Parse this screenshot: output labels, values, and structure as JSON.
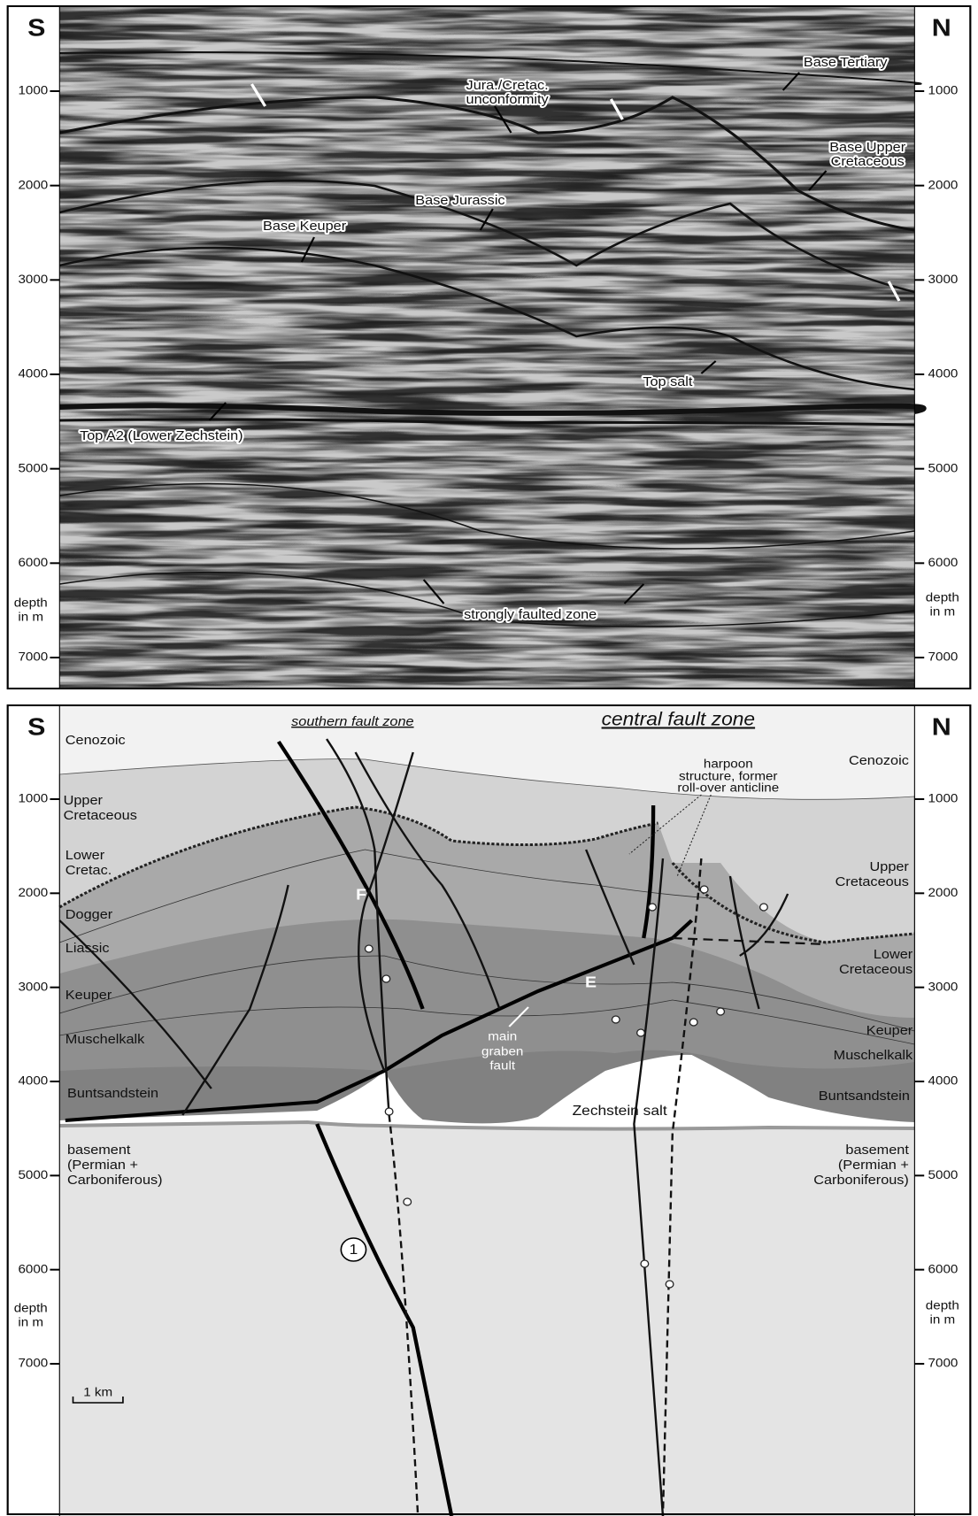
{
  "top_panel": {
    "left_label": "S",
    "right_label": "N",
    "depth_ticks": [
      1000,
      2000,
      3000,
      4000,
      5000,
      6000,
      7000
    ],
    "axis_label": [
      "depth",
      "in m"
    ],
    "annotations": {
      "base_tertiary": "Base Tertiary",
      "jura_cretac": [
        "Jura./Cretac.",
        "unconformity"
      ],
      "base_upper_cretaceous": [
        "Base Upper",
        "Cretaceous"
      ],
      "base_jurassic": "Base Jurassic",
      "base_keuper": "Base Keuper",
      "top_salt": "Top salt",
      "top_a2": "Top A2 (Lower Zechstein)",
      "strongly_faulted_zone": "strongly faulted zone"
    }
  },
  "bottom_panel": {
    "left_label": "S",
    "right_label": "N",
    "depth_ticks": [
      1000,
      2000,
      3000,
      4000,
      5000,
      6000,
      7000
    ],
    "axis_label": [
      "depth",
      "in m"
    ],
    "headings": {
      "southern": "southern fault zone",
      "central": "central fault zone"
    },
    "units_left": {
      "cenozoic": "Cenozoic",
      "upper_cretaceous": [
        "Upper",
        "Cretaceous"
      ],
      "lower_cretac": [
        "Lower",
        "Cretac."
      ],
      "dogger": "Dogger",
      "liassic": "Liassic",
      "keuper": "Keuper",
      "muschelkalk": "Muschelkalk",
      "buntsandstein": "Buntsandstein",
      "basement": [
        "basement",
        "(Permian +",
        "Carboniferous)"
      ]
    },
    "units_right": {
      "cenozoic": "Cenozoic",
      "upper_cretaceous": [
        "Upper",
        "Cretaceous"
      ],
      "lower_cretaceous": [
        "Lower",
        "Cretaceous"
      ],
      "keuper": "Keuper",
      "muschelkalk": "Muschelkalk",
      "buntsandstein": "Buntsandstein",
      "basement": [
        "basement",
        "(Permian +",
        "Carboniferous)"
      ]
    },
    "annotations": {
      "harpoon": [
        "harpoon",
        "structure, former",
        "roll-over anticline"
      ],
      "main_graben_fault": [
        "main",
        "graben",
        "fault"
      ],
      "zechstein_salt": "Zechstein salt",
      "fault_f": "F",
      "fault_e": "E",
      "fault_number": "1",
      "scale_bar": "1 km"
    }
  }
}
